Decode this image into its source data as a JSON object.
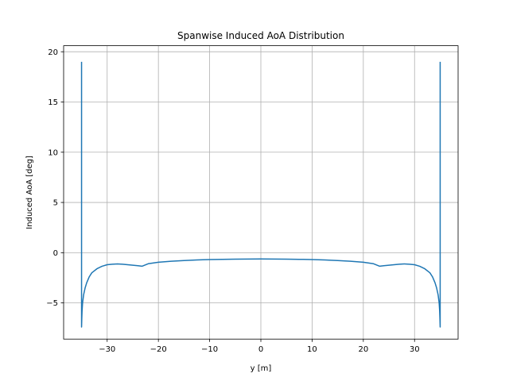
{
  "chart_data": {
    "type": "line",
    "title": "Spanwise Induced AoA Distribution",
    "xlabel": "y [m]",
    "ylabel": "Induced AoA [deg]",
    "xlim": [
      -38.5,
      38.5
    ],
    "ylim": [
      -8.6,
      20.6
    ],
    "xticks": [
      -30,
      -20,
      -10,
      0,
      10,
      20,
      30
    ],
    "yticks": [
      -5,
      0,
      5,
      10,
      15,
      20
    ],
    "xtick_labels": [
      "−30",
      "−20",
      "−10",
      "0",
      "10",
      "20",
      "30"
    ],
    "ytick_labels": [
      "−5",
      "0",
      "5",
      "10",
      "15",
      "20"
    ],
    "grid": true,
    "line_color": "#1f77b4",
    "series": [
      {
        "x": [
          -35.0,
          -35.0,
          -34.95,
          -34.9,
          -34.8,
          -34.6,
          -34.3,
          -34.0,
          -33.5,
          -33.0,
          -32.0,
          -31.0,
          -30.0,
          -29.0,
          -28.0,
          -27.0,
          -26.0,
          -25.0,
          -24.0,
          -23.2,
          -22.0,
          -20.0,
          -17.5,
          -15.0,
          -12.5,
          -10.0,
          -7.5,
          -5.0,
          -2.5,
          0.0,
          2.5,
          5.0,
          7.5,
          10.0,
          12.5,
          15.0,
          17.5,
          20.0,
          22.0,
          23.2,
          24.0,
          25.0,
          26.0,
          27.0,
          28.0,
          29.0,
          30.0,
          31.0,
          32.0,
          33.0,
          33.5,
          34.0,
          34.3,
          34.6,
          34.8,
          34.9,
          34.95,
          35.0,
          35.0
        ],
        "y": [
          19.0,
          -7.4,
          -6.5,
          -5.8,
          -5.0,
          -4.2,
          -3.5,
          -3.0,
          -2.4,
          -2.0,
          -1.6,
          -1.35,
          -1.2,
          -1.15,
          -1.12,
          -1.15,
          -1.2,
          -1.25,
          -1.3,
          -1.35,
          -1.1,
          -0.95,
          -0.85,
          -0.78,
          -0.72,
          -0.68,
          -0.66,
          -0.64,
          -0.63,
          -0.62,
          -0.63,
          -0.64,
          -0.66,
          -0.68,
          -0.72,
          -0.78,
          -0.85,
          -0.95,
          -1.1,
          -1.35,
          -1.3,
          -1.25,
          -1.2,
          -1.15,
          -1.12,
          -1.15,
          -1.2,
          -1.35,
          -1.6,
          -2.0,
          -2.4,
          -3.0,
          -3.5,
          -4.2,
          -5.0,
          -5.8,
          -6.5,
          -7.4,
          19.0
        ]
      }
    ]
  }
}
